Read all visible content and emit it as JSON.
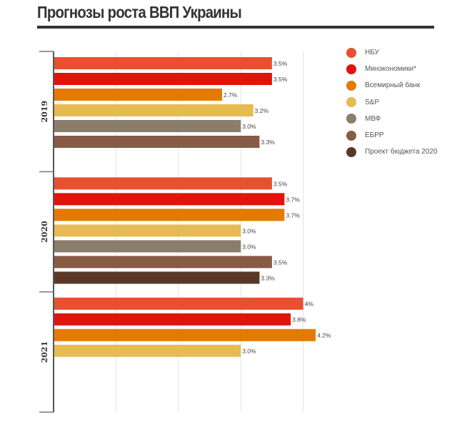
{
  "title": "Прогнозы роста ВВП Украины",
  "chart_data": {
    "type": "bar",
    "orientation": "horizontal",
    "title": "Прогнозы роста ВВП Украины",
    "xlabel": "",
    "ylabel": "",
    "xlim": [
      0,
      6
    ],
    "grid": true,
    "legend_placement": "right",
    "categories": [
      "2019",
      "2020",
      "2021"
    ],
    "series": [
      {
        "name": "НБУ",
        "color": "#e8502f",
        "values": [
          3.5,
          3.5,
          4.0
        ],
        "labels": [
          "3.5%",
          "3.5%",
          "4%"
        ]
      },
      {
        "name": "Минэкономики*",
        "color": "#e0140c",
        "values": [
          3.5,
          3.7,
          3.8
        ],
        "labels": [
          "3.5%",
          "3.7%",
          "3.8%"
        ]
      },
      {
        "name": "Всемирный банк",
        "color": "#e57a02",
        "values": [
          2.7,
          3.7,
          4.2
        ],
        "labels": [
          "2.7%",
          "3.7%",
          "4.2%"
        ]
      },
      {
        "name": "S&P",
        "color": "#e6bb52",
        "values": [
          3.2,
          3.0,
          3.0
        ],
        "labels": [
          "3.2%",
          "3.0%",
          "3.0%"
        ]
      },
      {
        "name": "МВФ",
        "color": "#8b7d6b",
        "values": [
          3.0,
          3.0,
          null
        ],
        "labels": [
          "3.0%",
          "3.0%",
          null
        ]
      },
      {
        "name": "ЕБРР",
        "color": "#875b46",
        "values": [
          3.3,
          3.5,
          null
        ],
        "labels": [
          "3.3%",
          "3.5%",
          null
        ]
      },
      {
        "name": "Проект бюджета 2020",
        "color": "#5a3828",
        "values": [
          null,
          3.3,
          null
        ],
        "labels": [
          null,
          "3.3%",
          null
        ]
      }
    ]
  }
}
